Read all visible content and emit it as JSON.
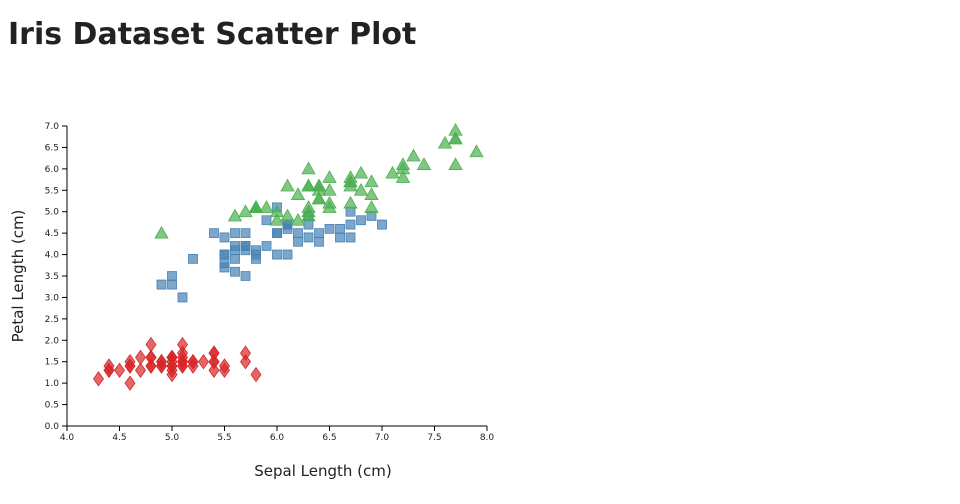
{
  "chart_data": {
    "type": "scatter",
    "title": "Iris Dataset Scatter Plot",
    "x_label": "Sepal Length (cm)",
    "y_label": "Petal Length (cm)",
    "xlim": [
      4.0,
      8.0
    ],
    "ylim": [
      0.0,
      7.0
    ],
    "xticks": [
      {
        "value": 4.0,
        "label": "4.0"
      },
      4.5,
      {
        "value": 5.0,
        "label": "5.0"
      },
      5.5,
      {
        "value": 6.0,
        "label": "6.0"
      },
      6.5,
      {
        "value": 7.0,
        "label": "7.0"
      },
      7.5,
      {
        "value": 8.0,
        "label": "8.0"
      }
    ],
    "yticks": [
      {
        "value": 0,
        "label": "0.0"
      },
      0.5,
      {
        "value": 1,
        "label": "1.0"
      },
      1.5,
      {
        "value": 2,
        "label": "2.0"
      },
      2.5,
      {
        "value": 3,
        "label": "3.0"
      },
      3.5,
      {
        "value": 4,
        "label": "4.0"
      },
      4.5,
      {
        "value": 5,
        "label": "5.0"
      },
      5.5,
      {
        "value": 6,
        "label": "6.0"
      },
      6.5,
      {
        "value": 7,
        "label": "7.0"
      }
    ],
    "series": [
      {
        "color": "#d62728",
        "marker": "diamond",
        "x": [
          5.1,
          4.9,
          4.7,
          4.6,
          5.0,
          5.4,
          4.6,
          5.0,
          4.4,
          4.9,
          5.4,
          4.8,
          4.8,
          4.3,
          5.8,
          5.7,
          5.4,
          5.1,
          5.7,
          5.1,
          5.4,
          5.1,
          4.6,
          5.1,
          4.8,
          5.0,
          5.0,
          5.2,
          5.2,
          4.7,
          4.8,
          5.4,
          5.2,
          5.5,
          4.9,
          5.0,
          5.5,
          4.9,
          4.4,
          5.1,
          5.0,
          4.5,
          4.4,
          5.0,
          5.1,
          4.8,
          5.1,
          4.6,
          5.3,
          5.0
        ],
        "values": [
          1.4,
          1.4,
          1.3,
          1.5,
          1.4,
          1.7,
          1.4,
          1.5,
          1.4,
          1.5,
          1.5,
          1.6,
          1.4,
          1.1,
          1.2,
          1.5,
          1.3,
          1.4,
          1.7,
          1.5,
          1.7,
          1.5,
          1.0,
          1.7,
          1.9,
          1.6,
          1.6,
          1.5,
          1.4,
          1.6,
          1.6,
          1.5,
          1.5,
          1.4,
          1.5,
          1.2,
          1.3,
          1.4,
          1.3,
          1.5,
          1.3,
          1.3,
          1.3,
          1.6,
          1.9,
          1.4,
          1.6,
          1.4,
          1.5,
          1.4
        ]
      },
      {
        "color": "#4682b4",
        "marker": "square",
        "x": [
          7.0,
          6.4,
          6.9,
          5.5,
          6.5,
          5.7,
          6.3,
          4.9,
          6.6,
          5.2,
          5.0,
          5.9,
          6.0,
          6.1,
          5.6,
          6.7,
          5.6,
          5.8,
          6.2,
          5.6,
          5.9,
          6.1,
          6.3,
          6.1,
          6.4,
          6.6,
          6.8,
          6.7,
          6.0,
          5.7,
          5.5,
          5.5,
          5.8,
          6.0,
          5.4,
          6.0,
          6.7,
          6.3,
          5.6,
          5.5,
          5.5,
          6.1,
          5.8,
          5.0,
          5.6,
          5.7,
          5.7,
          6.2,
          5.1,
          5.7
        ],
        "values": [
          4.7,
          4.5,
          4.9,
          4.0,
          4.6,
          4.5,
          4.7,
          3.3,
          4.6,
          3.9,
          3.5,
          4.2,
          4.0,
          4.7,
          3.6,
          4.4,
          4.5,
          4.1,
          4.5,
          3.9,
          4.8,
          4.0,
          4.9,
          4.7,
          4.3,
          4.4,
          4.8,
          5.0,
          4.5,
          3.5,
          3.8,
          3.7,
          3.9,
          5.1,
          4.5,
          4.5,
          4.7,
          4.4,
          4.1,
          4.0,
          4.4,
          4.6,
          4.0,
          3.3,
          4.2,
          4.2,
          4.2,
          4.3,
          3.0,
          4.1
        ]
      },
      {
        "color": "#4caf50",
        "marker": "triangle",
        "x": [
          6.3,
          5.8,
          7.1,
          6.3,
          6.5,
          7.6,
          4.9,
          7.3,
          6.7,
          7.2,
          6.5,
          6.4,
          6.8,
          5.7,
          5.8,
          6.4,
          6.5,
          7.7,
          7.7,
          6.0,
          6.9,
          5.6,
          7.7,
          6.3,
          6.7,
          7.2,
          6.2,
          6.1,
          6.4,
          7.2,
          7.4,
          7.9,
          6.4,
          6.3,
          6.1,
          7.7,
          6.3,
          6.4,
          6.0,
          6.9,
          6.7,
          6.9,
          5.8,
          6.8,
          6.7,
          6.7,
          6.3,
          6.5,
          6.2,
          5.9
        ],
        "values": [
          6.0,
          5.1,
          5.9,
          5.6,
          5.8,
          6.6,
          4.5,
          6.3,
          5.8,
          6.1,
          5.1,
          5.3,
          5.5,
          5.0,
          5.1,
          5.3,
          5.5,
          6.7,
          6.9,
          5.0,
          5.7,
          4.9,
          6.7,
          4.9,
          5.7,
          6.0,
          4.8,
          4.9,
          5.6,
          5.8,
          6.1,
          6.4,
          5.6,
          5.1,
          5.6,
          6.1,
          5.6,
          5.5,
          4.8,
          5.4,
          5.6,
          5.1,
          5.1,
          5.9,
          5.7,
          5.2,
          5.0,
          5.2,
          5.4,
          5.1
        ]
      }
    ]
  }
}
